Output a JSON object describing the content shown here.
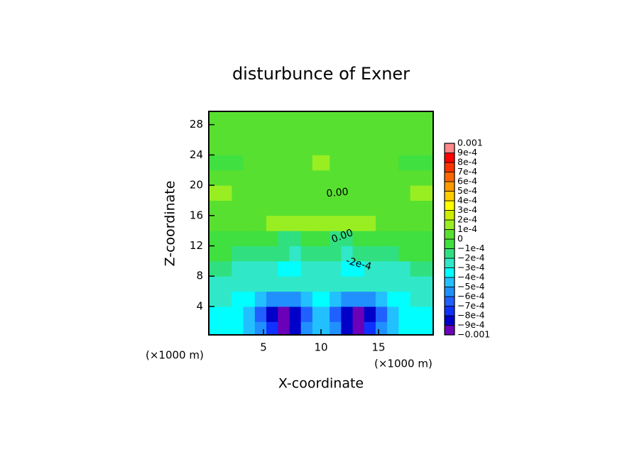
{
  "chart_data": {
    "type": "contour",
    "title": "disturbunce of Exner",
    "x_label": "X-coordinate",
    "y_label": "Z-coordinate",
    "x_unit": "(×1000 m)",
    "y_unit": "(×1000 m)",
    "xlim": [
      0.25,
      19.75
    ],
    "ylim": [
      0.25,
      29.75
    ],
    "xticks": [
      5,
      10,
      15
    ],
    "yticks": [
      4,
      8,
      12,
      16,
      20,
      24,
      28
    ],
    "contour_labels": [
      "0.00",
      "0.00",
      "-2e-4"
    ],
    "levels": [
      {
        "value": -0.001,
        "label": "−0.001"
      },
      {
        "value": -0.0009,
        "label": "−9e-4"
      },
      {
        "value": -0.0008,
        "label": "−8e-4"
      },
      {
        "value": -0.0007,
        "label": "−7e-4"
      },
      {
        "value": -0.0006,
        "label": "−6e-4"
      },
      {
        "value": -0.0005,
        "label": "−5e-4"
      },
      {
        "value": -0.0004,
        "label": "−4e-4"
      },
      {
        "value": -0.0003,
        "label": "−3e-4"
      },
      {
        "value": -0.0002,
        "label": "−2e-4"
      },
      {
        "value": -0.0001,
        "label": "−1e-4"
      },
      0,
      {
        "value": 0.0001,
        "label": "1e-4"
      },
      {
        "value": 0.0002,
        "label": "2e-4"
      },
      {
        "value": 0.0003,
        "label": "3e-4"
      },
      {
        "value": 0.0004,
        "label": "4e-4"
      },
      {
        "value": 0.0005,
        "label": "5e-4"
      },
      {
        "value": 0.0006,
        "label": "6e-4"
      },
      {
        "value": 0.0007,
        "label": "7e-4"
      },
      {
        "value": 0.0008,
        "label": "8e-4"
      },
      {
        "value": 0.0009,
        "label": "9e-4"
      },
      0.001
    ],
    "colors": [
      "#6a00b8",
      "#0000c8",
      "#1030ff",
      "#2060ff",
      "#2090ff",
      "#22c0ff",
      "#00ffff",
      "#30e8c8",
      "#30e080",
      "#40e040",
      "#58e030",
      "#99ee22",
      "#ccee00",
      "#ffff00",
      "#ffcc00",
      "#ff9900",
      "#ff6600",
      "#ff3300",
      "#ff0000",
      "#ff8888"
    ],
    "x": [
      0.75,
      1.75,
      2.75,
      3.75,
      4.75,
      5.75,
      6.75,
      7.75,
      8.75,
      9.75,
      10.25,
      11.25,
      12.25,
      13.25,
      14.25,
      15.25,
      16.25,
      17.25,
      18.25,
      19.25
    ],
    "y": [
      1,
      3,
      5,
      7,
      9,
      11,
      13,
      15,
      17,
      19,
      21,
      23,
      25,
      27,
      29
    ],
    "z": [
      [
        -0.00035,
        -0.00035,
        -0.00035,
        -0.00045,
        -0.00055,
        -0.00075,
        -0.00095,
        -0.00085,
        -0.00055,
        -0.00045,
        -0.00045,
        -0.00055,
        -0.00085,
        -0.00095,
        -0.00075,
        -0.00055,
        -0.00045,
        -0.00035,
        -0.00035,
        -0.00035
      ],
      [
        -0.00035,
        -0.00035,
        -0.00035,
        -0.00045,
        -0.00065,
        -0.00085,
        -0.00095,
        -0.00085,
        -0.00065,
        -0.00045,
        -0.00045,
        -0.00065,
        -0.00085,
        -0.00095,
        -0.00085,
        -0.00065,
        -0.00045,
        -0.00035,
        -0.00035,
        -0.00035
      ],
      [
        -0.00025,
        -0.00025,
        -0.00035,
        -0.00035,
        -0.00045,
        -0.00055,
        -0.00055,
        -0.00055,
        -0.00045,
        -0.00035,
        -0.00035,
        -0.00045,
        -0.00055,
        -0.00055,
        -0.00055,
        -0.00045,
        -0.00035,
        -0.00035,
        -0.00025,
        -0.00025
      ],
      [
        -0.00025,
        -0.00025,
        -0.00025,
        -0.00025,
        -0.00025,
        -0.00025,
        -0.00025,
        -0.00025,
        -0.00025,
        -0.00025,
        -0.00025,
        -0.00025,
        -0.00025,
        -0.00025,
        -0.00025,
        -0.00025,
        -0.00025,
        -0.00025,
        -0.00025,
        -0.00025
      ],
      [
        -0.00015,
        -0.00015,
        -0.00025,
        -0.00025,
        -0.00025,
        -0.00025,
        -0.00035,
        -0.00035,
        -0.00025,
        -0.00025,
        -0.00025,
        -0.00025,
        -0.00035,
        -0.00035,
        -0.00025,
        -0.00025,
        -0.00025,
        -0.00025,
        -0.00015,
        -0.00015
      ],
      [
        -5e-05,
        -5e-05,
        -0.00015,
        -0.00015,
        -0.00015,
        -0.00015,
        -0.00015,
        -0.00025,
        -0.00015,
        -0.00015,
        -0.00015,
        -0.00015,
        -0.00025,
        -0.00015,
        -0.00015,
        -0.00015,
        -0.00015,
        -5e-05,
        -5e-05,
        -5e-05
      ],
      [
        -5e-05,
        -5e-05,
        -5e-05,
        -5e-05,
        -5e-05,
        -5e-05,
        -0.00015,
        -0.00015,
        -5e-05,
        -5e-05,
        -5e-05,
        -0.00015,
        -0.00015,
        -5e-05,
        -5e-05,
        -5e-05,
        -5e-05,
        -5e-05,
        -5e-05,
        -5e-05
      ],
      [
        5e-05,
        5e-05,
        5e-05,
        5e-05,
        5e-05,
        0.00015,
        0.00015,
        0.00015,
        0.00015,
        0.00015,
        0.00015,
        0.00015,
        0.00015,
        0.00015,
        0.00015,
        5e-05,
        5e-05,
        5e-05,
        5e-05,
        5e-05
      ],
      [
        5e-05,
        5e-05,
        5e-05,
        5e-05,
        5e-05,
        5e-05,
        5e-05,
        5e-05,
        5e-05,
        5e-05,
        5e-05,
        5e-05,
        5e-05,
        5e-05,
        5e-05,
        5e-05,
        5e-05,
        5e-05,
        5e-05,
        5e-05
      ],
      [
        0.00015,
        0.00015,
        5e-05,
        5e-05,
        5e-05,
        5e-05,
        5e-05,
        5e-05,
        5e-05,
        5e-05,
        5e-05,
        5e-05,
        5e-05,
        5e-05,
        5e-05,
        5e-05,
        5e-05,
        5e-05,
        0.00015,
        0.00015
      ],
      [
        5e-05,
        5e-05,
        5e-05,
        5e-05,
        5e-05,
        5e-05,
        5e-05,
        5e-05,
        5e-05,
        5e-05,
        5e-05,
        5e-05,
        5e-05,
        5e-05,
        5e-05,
        5e-05,
        5e-05,
        5e-05,
        5e-05,
        5e-05
      ],
      [
        -5e-05,
        -5e-05,
        -5e-05,
        5e-05,
        5e-05,
        5e-05,
        5e-05,
        5e-05,
        5e-05,
        0.00015,
        0.00015,
        5e-05,
        5e-05,
        5e-05,
        5e-05,
        5e-05,
        5e-05,
        -5e-05,
        -5e-05,
        -5e-05
      ],
      [
        5e-05,
        5e-05,
        5e-05,
        5e-05,
        5e-05,
        5e-05,
        5e-05,
        5e-05,
        5e-05,
        5e-05,
        5e-05,
        5e-05,
        5e-05,
        5e-05,
        5e-05,
        5e-05,
        5e-05,
        5e-05,
        5e-05,
        5e-05
      ],
      [
        5e-05,
        5e-05,
        5e-05,
        5e-05,
        5e-05,
        5e-05,
        5e-05,
        5e-05,
        5e-05,
        5e-05,
        5e-05,
        5e-05,
        5e-05,
        5e-05,
        5e-05,
        5e-05,
        5e-05,
        5e-05,
        5e-05,
        5e-05
      ],
      [
        5e-05,
        5e-05,
        5e-05,
        5e-05,
        5e-05,
        5e-05,
        5e-05,
        5e-05,
        5e-05,
        5e-05,
        5e-05,
        5e-05,
        5e-05,
        5e-05,
        5e-05,
        5e-05,
        5e-05,
        5e-05,
        5e-05,
        5e-05
      ]
    ]
  }
}
